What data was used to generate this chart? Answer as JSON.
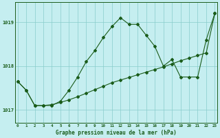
{
  "title": "Graphe pression niveau de la mer (hPa)",
  "background_color": "#c5eef0",
  "grid_color": "#88cccc",
  "line_color": "#1a5c1a",
  "x_labels": [
    "0",
    "1",
    "2",
    "3",
    "4",
    "5",
    "6",
    "7",
    "8",
    "9",
    "10",
    "11",
    "12",
    "13",
    "14",
    "15",
    "16",
    "17",
    "18",
    "19",
    "20",
    "21",
    "22",
    "23"
  ],
  "series1": [
    1017.65,
    1017.45,
    1017.1,
    1017.1,
    1017.1,
    1017.2,
    1017.45,
    1017.75,
    1018.1,
    1018.35,
    1018.65,
    1018.9,
    1019.1,
    1018.95,
    1018.95,
    1018.7,
    1018.45,
    1018.0,
    1018.15,
    1017.75,
    1017.75,
    1017.75,
    1018.6,
    1019.2
  ],
  "series2": [
    1017.65,
    1017.45,
    1017.1,
    1017.1,
    1017.12,
    1017.17,
    1017.23,
    1017.3,
    1017.38,
    1017.46,
    1017.54,
    1017.62,
    1017.68,
    1017.74,
    1017.8,
    1017.86,
    1017.92,
    1017.98,
    1018.05,
    1018.12,
    1018.18,
    1018.24,
    1018.3,
    1019.2
  ],
  "ylim": [
    1016.7,
    1019.45
  ],
  "yticks": [
    1017,
    1018,
    1019
  ],
  "xlim": [
    -0.3,
    23.3
  ]
}
